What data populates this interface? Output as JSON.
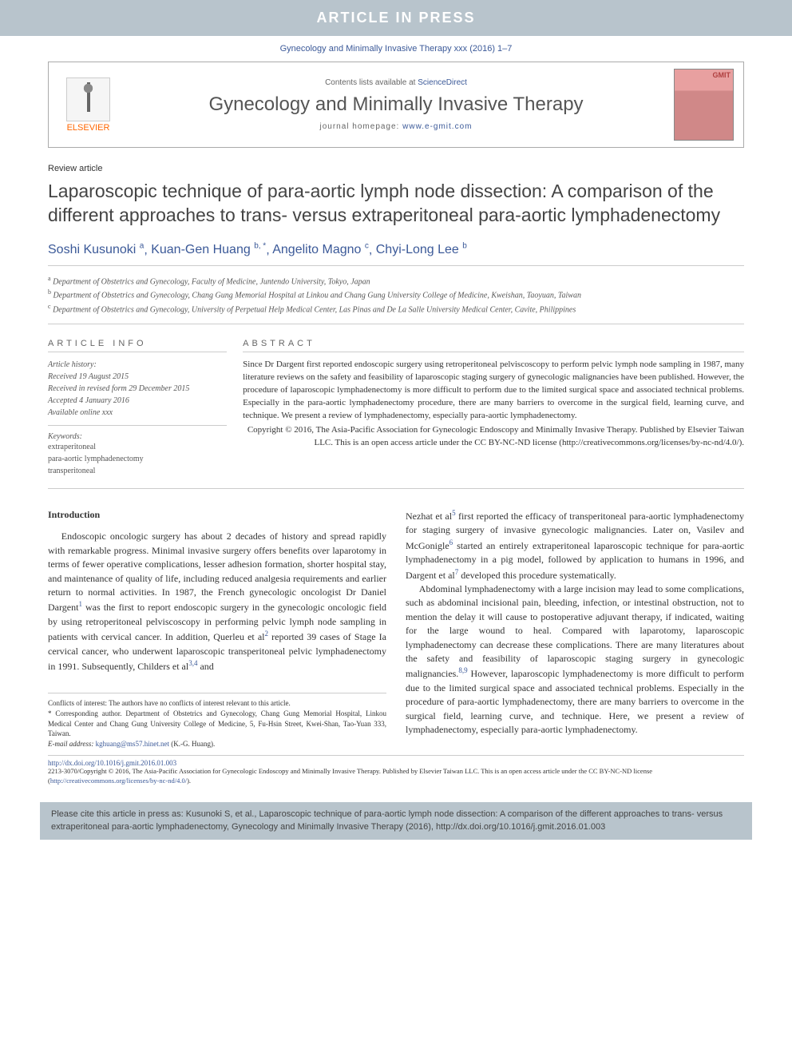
{
  "banner": "ARTICLE IN PRESS",
  "topCitation": "Gynecology and Minimally Invasive Therapy xxx (2016) 1–7",
  "header": {
    "elsevier": "ELSEVIER",
    "contentsText": "Contents lists available at ",
    "contentsLink": "ScienceDirect",
    "journalName": "Gynecology and Minimally Invasive Therapy",
    "homepageLabel": "journal homepage: ",
    "homepageLink": "www.e-gmit.com",
    "gmit": "GMIT"
  },
  "articleType": "Review article",
  "title": "Laparoscopic technique of para-aortic lymph node dissection: A comparison of the different approaches to trans- versus extraperitoneal para-aortic lymphadenectomy",
  "authors": [
    {
      "name": "Soshi Kusunoki",
      "aff": "a"
    },
    {
      "name": "Kuan-Gen Huang",
      "aff": "b, *"
    },
    {
      "name": "Angelito Magno",
      "aff": "c"
    },
    {
      "name": "Chyi-Long Lee",
      "aff": "b"
    }
  ],
  "affiliations": {
    "a": "Department of Obstetrics and Gynecology, Faculty of Medicine, Juntendo University, Tokyo, Japan",
    "b": "Department of Obstetrics and Gynecology, Chang Gung Memorial Hospital at Linkou and Chang Gung University College of Medicine, Kweishan, Taoyuan, Taiwan",
    "c": "Department of Obstetrics and Gynecology, University of Perpetual Help Medical Center, Las Pinas and De La Salle University Medical Center, Cavite, Philippines"
  },
  "infoHead": "ARTICLE INFO",
  "abstractHead": "ABSTRACT",
  "history": {
    "label": "Article history:",
    "received": "Received 19 August 2015",
    "revised": "Received in revised form 29 December 2015",
    "accepted": "Accepted 4 January 2016",
    "online": "Available online xxx"
  },
  "keywordsLabel": "Keywords:",
  "keywords": [
    "extraperitoneal",
    "para-aortic lymphadenectomy",
    "transperitoneal"
  ],
  "abstract": "Since Dr Dargent first reported endoscopic surgery using retroperitoneal pelviscoscopy to perform pelvic lymph node sampling in 1987, many literature reviews on the safety and feasibility of laparoscopic staging surgery of gynecologic malignancies have been published. However, the procedure of laparoscopic lymphadenectomy is more difficult to perform due to the limited surgical space and associated technical problems. Especially in the para-aortic lymphadenectomy procedure, there are many barriers to overcome in the surgical field, learning curve, and technique. We present a review of lymphadenectomy, especially para-aortic lymphadenectomy.",
  "abstractCopy": "Copyright © 2016, The Asia-Pacific Association for Gynecologic Endoscopy and Minimally Invasive Therapy. Published by Elsevier Taiwan LLC. This is an open access article under the CC BY-NC-ND license (",
  "ccLink": "http://creativecommons.org/licenses/by-nc-nd/4.0/",
  "introHead": "Introduction",
  "col1p1a": "Endoscopic oncologic surgery has about 2 decades of history and spread rapidly with remarkable progress. Minimal invasive surgery offers benefits over laparotomy in terms of fewer operative complications, lesser adhesion formation, shorter hospital stay, and maintenance of quality of life, including reduced analgesia requirements and earlier return to normal activities. In 1987, the French gynecologic oncologist Dr Daniel Dargent",
  "col1p1b": " was the first to report endoscopic surgery in the gynecologic oncologic field by using retroperitoneal pelviscoscopy in performing pelvic lymph node sampling in patients with cervical cancer. In addition, Querleu et al",
  "col1p1c": " reported 39 cases of Stage Ia cervical cancer, who underwent laparoscopic transperitoneal pelvic lymphadenectomy in 1991. Subsequently, Childers et al",
  "col1p1d": " and ",
  "col2p1a": "Nezhat et al",
  "col2p1b": " first reported the efficacy of transperitoneal para-aortic lymphadenectomy for staging surgery of invasive gynecologic malignancies. Later on, Vasilev and McGonigle",
  "col2p1c": " started an entirely extraperitoneal laparoscopic technique for para-aortic lymphadenectomy in a pig model, followed by application to humans in 1996, and Dargent et al",
  "col2p1d": " developed this procedure systematically.",
  "col2p2a": "Abdominal lymphadenectomy with a large incision may lead to some complications, such as abdominal incisional pain, bleeding, infection, or intestinal obstruction, not to mention the delay it will cause to postoperative adjuvant therapy, if indicated, waiting for the large wound to heal. Compared with laparotomy, laparoscopic lymphadenectomy can decrease these complications. There are many literatures about the safety and feasibility of laparoscopic staging surgery in gynecologic malignancies.",
  "col2p2b": " However, laparoscopic lymphadenectomy is more difficult to perform due to the limited surgical space and associated technical problems. Especially in the procedure of para-aortic lymphadenectomy, there are many barriers to overcome in the surgical field, learning curve, and technique. Here, we present a review of lymphadenectomy, especially para-aortic lymphadenectomy.",
  "footnotes": {
    "conflicts": "Conflicts of interest: The authors have no conflicts of interest relevant to this article.",
    "corresponding": "* Corresponding author. Department of Obstetrics and Gynecology, Chang Gung Memorial Hospital, Linkou Medical Center and Chang Gung University College of Medicine, 5, Fu-Hsin Street, Kwei-Shan, Tao-Yuan 333, Taiwan.",
    "emailLabel": "E-mail address: ",
    "email": "kghuang@ms57.hinet.net",
    "emailName": " (K.-G. Huang)."
  },
  "doi": "http://dx.doi.org/10.1016/j.gmit.2016.01.003",
  "bottomCopy": "2213-3070/Copyright © 2016, The Asia-Pacific Association for Gynecologic Endoscopy and Minimally Invasive Therapy. Published by Elsevier Taiwan LLC. This is an open access article under the CC BY-NC-ND license (",
  "citeBox": "Please cite this article in press as: Kusunoki S, et al., Laparoscopic technique of para-aortic lymph node dissection: A comparison of the different approaches to trans- versus extraperitoneal para-aortic lymphadenectomy, Gynecology and Minimally Invasive Therapy (2016), http://dx.doi.org/10.1016/j.gmit.2016.01.003"
}
